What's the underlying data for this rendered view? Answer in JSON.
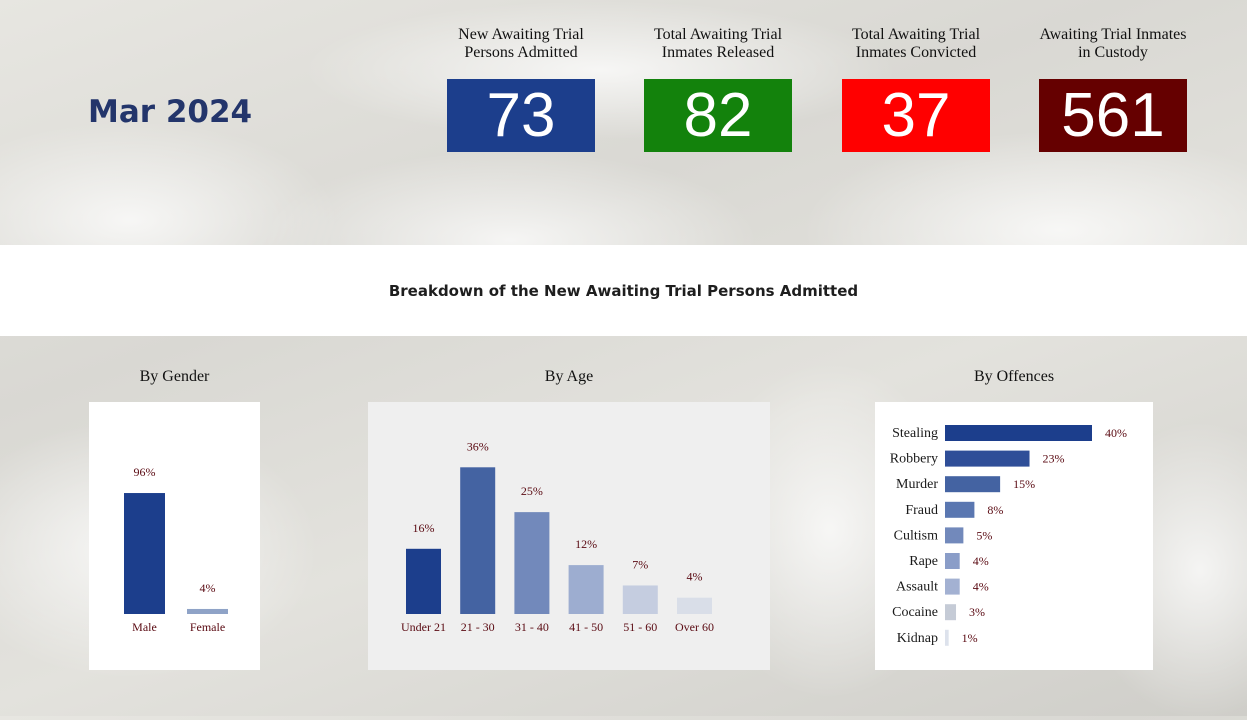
{
  "period": "Mar 2024",
  "kpis": [
    {
      "label_line1": "New Awaiting Trial",
      "label_line2": "Persons Admitted",
      "value": "73",
      "color": "#1c3e8c"
    },
    {
      "label_line1": "Total Awaiting Trial",
      "label_line2": "Inmates Released",
      "value": "82",
      "color": "#13820c"
    },
    {
      "label_line1": "Total Awaiting Trial",
      "label_line2": "Inmates Convicted",
      "value": "37",
      "color": "#ff0000"
    },
    {
      "label_line1": "Awaiting Trial Inmates",
      "label_line2": "in Custody",
      "value": "561",
      "color": "#650000"
    }
  ],
  "banner_title": "Breakdown of the New Awaiting Trial Persons Admitted",
  "label_color": "#5a0a12",
  "chart_data": [
    {
      "type": "bar",
      "title": "By Gender",
      "categories": [
        "Male",
        "Female"
      ],
      "values": [
        96,
        4
      ],
      "value_labels": [
        "96%",
        "4%"
      ],
      "colors": [
        "#1c3e8c",
        "#8fa3c7"
      ],
      "ylim": [
        0,
        100
      ]
    },
    {
      "type": "bar",
      "title": "By Age",
      "categories": [
        "Under 21",
        "21 - 30",
        "31 - 40",
        "41 - 50",
        "51 - 60",
        "Over 60"
      ],
      "values": [
        16,
        36,
        25,
        12,
        7,
        4
      ],
      "value_labels": [
        "16%",
        "36%",
        "25%",
        "12%",
        "7%",
        "4%"
      ],
      "colors": [
        "#1c3e8c",
        "#4463a2",
        "#7289bb",
        "#9dadd0",
        "#c5cde0",
        "#d9dee8"
      ],
      "ylim": [
        0,
        40
      ]
    },
    {
      "type": "bar",
      "orientation": "horizontal",
      "title": "By Offences",
      "categories": [
        "Stealing",
        "Robbery",
        "Murder",
        "Fraud",
        "Cultism",
        "Rape",
        "Assault",
        "Cocaine",
        "Kidnap"
      ],
      "values": [
        40,
        23,
        15,
        8,
        5,
        4,
        4,
        3,
        1
      ],
      "value_labels": [
        "40%",
        "23%",
        "15%",
        "8%",
        "5%",
        "4%",
        "4%",
        "3%",
        "1%"
      ],
      "colors": [
        "#1c3e8c",
        "#2f4e98",
        "#4463a2",
        "#5a77b1",
        "#7289bb",
        "#8a9dc8",
        "#a3b1d2",
        "#c5cbd6",
        "#dde2ec"
      ],
      "xlim": [
        0,
        40
      ]
    }
  ]
}
